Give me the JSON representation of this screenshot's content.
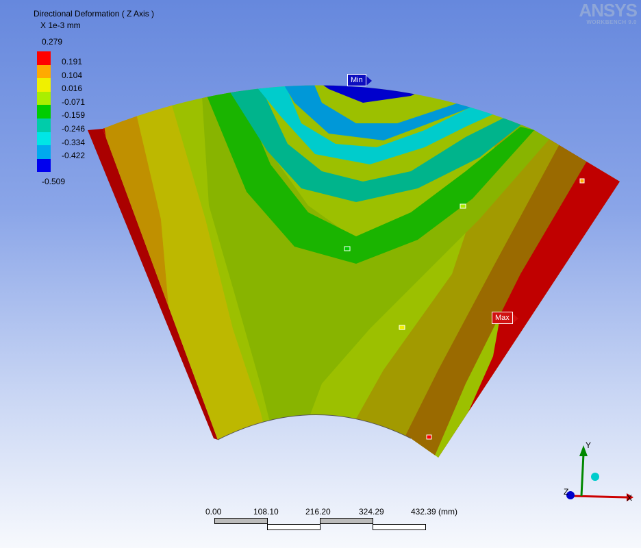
{
  "legend": {
    "title": "Directional Deformation ( Z Axis )",
    "units": "X 1e-3 mm",
    "max": "0.279",
    "min": "-0.509",
    "ticks": [
      "0.191",
      "0.104",
      "0.016",
      "-0.071",
      "-0.159",
      "-0.246",
      "-0.334",
      "-0.422"
    ],
    "colors": [
      "#ff0000",
      "#ffaa00",
      "#f0f000",
      "#aaee00",
      "#00cc00",
      "#00ccaa",
      "#00e6e6",
      "#00aaee",
      "#0000ee"
    ]
  },
  "logo": {
    "name": "ANSYS",
    "product": "WORKBENCH 9.0"
  },
  "probes": {
    "min_label": "Min",
    "max_label": "Max"
  },
  "scale_bar": {
    "ticks": [
      "0.00",
      "108.10",
      "216.20",
      "324.29",
      "432.39 (mm)"
    ]
  },
  "triad": {
    "x_label": "X",
    "y_label": "Y",
    "z_label": "Z"
  },
  "colors": {
    "background_top": "#6688dd",
    "background_bottom": "#f7f9fd"
  }
}
